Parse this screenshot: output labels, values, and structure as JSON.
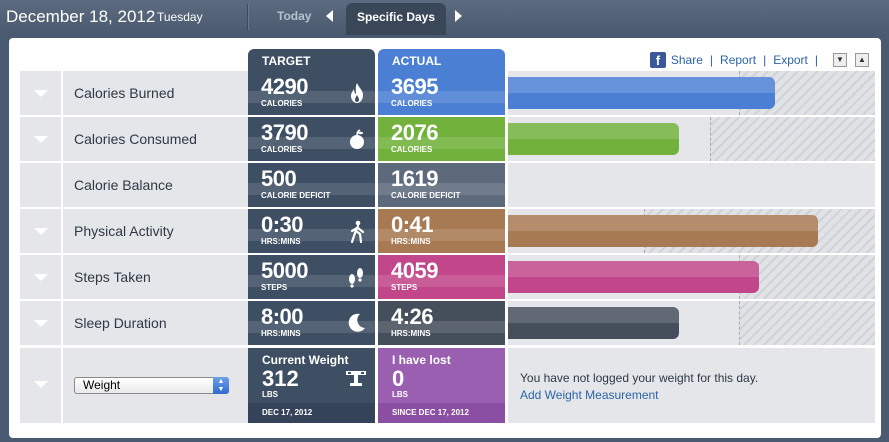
{
  "header": {
    "date": "December 18, 2012",
    "day": "Tuesday",
    "tabs": {
      "today": "Today",
      "specific": "Specific Days"
    }
  },
  "toolbar": {
    "share": "Share",
    "report": "Report",
    "export": "Export"
  },
  "columns": {
    "target": "TARGET",
    "actual": "ACTUAL"
  },
  "rows": [
    {
      "label": "Calories Burned",
      "target": "4290",
      "target_unit": "CALORIES",
      "actual": "3695",
      "actual_unit": "CALORIES",
      "icon": "flame-icon",
      "color": "#4b7fd4",
      "bar_pct": 0.86,
      "hatch_pct": 0.63
    },
    {
      "label": "Calories Consumed",
      "target": "3790",
      "target_unit": "CALORIES",
      "actual": "2076",
      "actual_unit": "CALORIES",
      "icon": "apple-icon",
      "color": "#72b23c",
      "bar_pct": 0.55,
      "hatch_pct": 0.55
    },
    {
      "label": "Calorie Balance",
      "target": "500",
      "target_unit": "CALORIE DEFICIT",
      "actual": "1619",
      "actual_unit": "CALORIE DEFICIT",
      "icon": "",
      "color": "#5d6a7c"
    },
    {
      "label": "Physical Activity",
      "target": "0:30",
      "target_unit": "HRS:MINS",
      "actual": "0:41",
      "actual_unit": "HRS:MINS",
      "icon": "walker-icon",
      "color": "#a87a54",
      "bar_pct": 1.0,
      "hatch_pct": 0.37
    },
    {
      "label": "Steps Taken",
      "target": "5000",
      "target_unit": "STEPS",
      "actual": "4059",
      "actual_unit": "STEPS",
      "icon": "footprints-icon",
      "color": "#c1478a",
      "bar_pct": 0.81,
      "hatch_pct": 0.63
    },
    {
      "label": "Sleep Duration",
      "target": "8:00",
      "target_unit": "HRS:MINS",
      "actual": "4:26",
      "actual_unit": "HRS:MINS",
      "icon": "moon-icon",
      "color": "#454f5c",
      "bar_pct": 0.55,
      "hatch_pct": 0.63
    }
  ],
  "weight": {
    "select_value": "Weight",
    "current_title": "Current Weight",
    "current_value": "312",
    "current_unit": "LBS",
    "current_date": "DEC 17, 2012",
    "lost_title": "I have lost",
    "lost_value": "0",
    "lost_unit": "LBS",
    "lost_since": "SINCE DEC 17, 2012",
    "message": "You have not logged your weight for this day.",
    "link": "Add Weight Measurement"
  }
}
